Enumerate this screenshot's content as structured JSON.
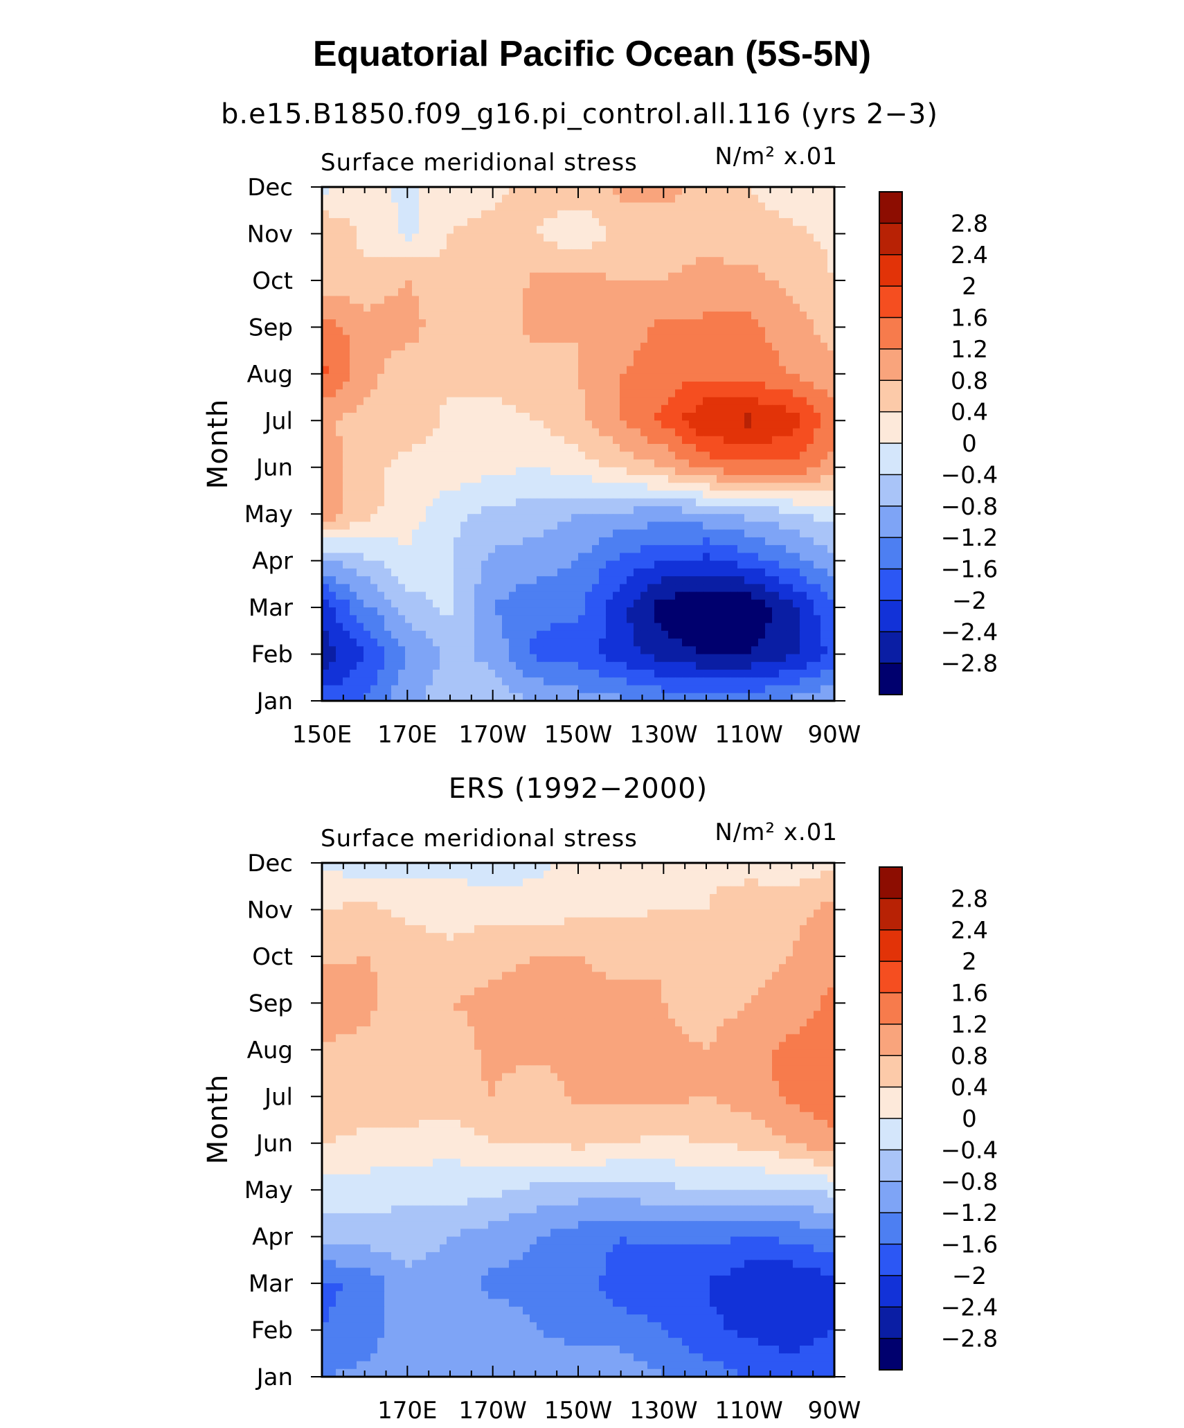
{
  "figure": {
    "title": "Equatorial Pacific Ocean (5S-5N)"
  },
  "colorscale": {
    "levels": [
      -2.8,
      -2.4,
      -2,
      -1.6,
      -1.2,
      -0.8,
      -0.4,
      0,
      0.4,
      0.8,
      1.2,
      1.6,
      2,
      2.4,
      2.8
    ],
    "labels": [
      "2.8",
      "2.4",
      "2",
      "1.6",
      "1.2",
      "0.8",
      "0.4",
      "0",
      "−0.4",
      "−0.8",
      "−1.2",
      "−1.6",
      "−2",
      "−2.4",
      "−2.8"
    ],
    "colors": [
      "#00006e",
      "#0a1ea4",
      "#1232d8",
      "#2c57f4",
      "#4d7ff2",
      "#7ea4f6",
      "#a9c4f8",
      "#d4e6fb",
      "#fde9da",
      "#fccaa9",
      "#f9a47c",
      "#f77b4c",
      "#f54e20",
      "#e23308",
      "#b82205",
      "#8d0d01"
    ]
  },
  "chart_data": [
    {
      "type": "heatmap",
      "title": "b.e15.B1850.f09_g16.pi_control.all.116 (yrs 2−3)",
      "left_label": "Surface meridional stress",
      "units": "N/m² x.01",
      "ylabel": "Month",
      "xlim": [
        150,
        270
      ],
      "x_ticks": [
        150,
        170,
        190,
        210,
        230,
        250,
        270
      ],
      "x_ticklabels": [
        "150E",
        "170E",
        "170W",
        "150W",
        "130W",
        "110W",
        "90W"
      ],
      "x": [
        150,
        160,
        170,
        180,
        190,
        200,
        210,
        220,
        230,
        240,
        250,
        260,
        270
      ],
      "y_ticklabels": [
        "Jan",
        "Feb",
        "Mar",
        "Apr",
        "May",
        "Jun",
        "Jul",
        "Aug",
        "Sep",
        "Oct",
        "Nov",
        "Dec"
      ],
      "values": [
        [
          -1.8,
          -1.6,
          -0.9,
          -0.6,
          -0.6,
          -0.8,
          -1.0,
          -1.1,
          -1.3,
          -1.3,
          -1.3,
          -1.1,
          -0.8
        ],
        [
          -2.7,
          -2.0,
          -1.2,
          -0.7,
          -0.9,
          -1.7,
          -1.8,
          -2.2,
          -2.6,
          -2.8,
          -2.8,
          -2.5,
          -1.9
        ],
        [
          -2.2,
          -1.3,
          -0.6,
          -0.3,
          -1.2,
          -1.5,
          -1.5,
          -2.3,
          -3.0,
          -3.2,
          -3.2,
          -2.5,
          -1.6
        ],
        [
          -0.9,
          -0.5,
          -0.1,
          -0.4,
          -0.9,
          -1.0,
          -1.2,
          -1.7,
          -2.0,
          -2.1,
          -1.8,
          -1.4,
          -0.9
        ],
        [
          1.1,
          0.5,
          0.2,
          -0.3,
          -0.5,
          -0.6,
          -0.8,
          -0.9,
          -1.0,
          -0.9,
          -0.7,
          -0.5,
          -0.2
        ],
        [
          1.0,
          0.6,
          0.2,
          0.3,
          0.1,
          0.0,
          0.2,
          0.5,
          0.8,
          1.3,
          1.5,
          1.5,
          1.0
        ],
        [
          0.9,
          0.6,
          0.7,
          0.3,
          0.3,
          0.4,
          0.7,
          1.2,
          1.7,
          2.4,
          2.5,
          2.2,
          1.4
        ],
        [
          1.7,
          1.0,
          0.5,
          0.5,
          0.5,
          0.6,
          0.8,
          1.2,
          1.4,
          1.5,
          1.4,
          1.2,
          0.9
        ],
        [
          1.4,
          1.0,
          1.0,
          0.5,
          0.6,
          0.9,
          0.8,
          1.0,
          1.3,
          1.3,
          1.3,
          1.0,
          0.6
        ],
        [
          0.6,
          0.5,
          0.8,
          0.5,
          0.4,
          0.9,
          0.9,
          0.8,
          0.8,
          0.9,
          0.9,
          0.7,
          0.4
        ],
        [
          0.8,
          0.3,
          -0.1,
          0.4,
          0.5,
          0.4,
          0.1,
          0.5,
          0.6,
          0.7,
          0.6,
          0.5,
          0.3
        ],
        [
          -0.1,
          0.2,
          -0.1,
          0.3,
          0.3,
          0.6,
          0.6,
          0.9,
          0.9,
          0.7,
          0.4,
          0.1,
          0.2
        ]
      ]
    },
    {
      "type": "heatmap",
      "title": "ERS (1992−2000)",
      "left_label": "Surface meridional stress",
      "units": "N/m² x.01",
      "ylabel": "Month",
      "xlim": [
        150,
        270
      ],
      "x_ticks": [
        170,
        190,
        210,
        230,
        250,
        270
      ],
      "x_ticklabels": [
        "170E",
        "170W",
        "150W",
        "130W",
        "110W",
        "90W"
      ],
      "x": [
        150,
        160,
        170,
        180,
        190,
        200,
        210,
        220,
        230,
        240,
        250,
        260,
        270
      ],
      "y_ticklabels": [
        "Jan",
        "Feb",
        "Mar",
        "Apr",
        "May",
        "Jun",
        "Jul",
        "Aug",
        "Sep",
        "Oct",
        "Nov",
        "Dec"
      ],
      "values": [
        [
          -1.2,
          -1.1,
          -0.9,
          -1.0,
          -0.9,
          -0.8,
          -0.8,
          -0.9,
          -1.2,
          -1.4,
          -1.6,
          -1.8,
          -1.6
        ],
        [
          -1.6,
          -1.4,
          -1.0,
          -1.1,
          -1.0,
          -1.2,
          -1.4,
          -1.4,
          -1.6,
          -1.9,
          -2.1,
          -2.2,
          -2.0
        ],
        [
          -1.7,
          -1.5,
          -0.9,
          -1.0,
          -1.3,
          -1.3,
          -1.4,
          -1.8,
          -1.9,
          -2.0,
          -2.3,
          -2.4,
          -2.1
        ],
        [
          -0.6,
          -0.6,
          -0.6,
          -0.8,
          -1.0,
          -1.2,
          -1.4,
          -1.6,
          -1.5,
          -1.5,
          -1.6,
          -1.5,
          -1.3
        ],
        [
          -0.2,
          -0.2,
          -0.3,
          -0.2,
          -0.3,
          -0.5,
          -0.6,
          -0.6,
          -0.5,
          -0.4,
          -0.4,
          -0.5,
          -0.3
        ],
        [
          0.4,
          0.3,
          0.3,
          0.1,
          0.4,
          0.4,
          0.5,
          0.4,
          0.3,
          0.4,
          0.5,
          0.8,
          1.1
        ],
        [
          0.8,
          0.6,
          0.6,
          0.7,
          0.8,
          0.5,
          0.9,
          0.9,
          0.9,
          0.8,
          1.0,
          1.3,
          1.4
        ],
        [
          0.7,
          0.7,
          0.6,
          0.6,
          0.9,
          0.9,
          0.9,
          0.9,
          0.9,
          0.8,
          1.1,
          1.3,
          1.4
        ],
        [
          1.2,
          0.9,
          0.6,
          0.8,
          0.9,
          1.0,
          0.9,
          0.9,
          0.8,
          0.6,
          0.8,
          1.0,
          1.3
        ],
        [
          0.7,
          0.8,
          0.7,
          0.5,
          0.7,
          0.8,
          0.8,
          0.7,
          0.8,
          0.6,
          0.6,
          0.8,
          1.1
        ],
        [
          0.4,
          0.5,
          0.3,
          0.2,
          0.3,
          0.2,
          0.3,
          0.3,
          0.4,
          0.4,
          0.7,
          0.7,
          0.9
        ],
        [
          -0.1,
          -0.2,
          -0.1,
          -0.1,
          -0.3,
          -0.1,
          0.1,
          0.2,
          0.3,
          0.3,
          0.2,
          0.1,
          0.3
        ]
      ]
    }
  ]
}
